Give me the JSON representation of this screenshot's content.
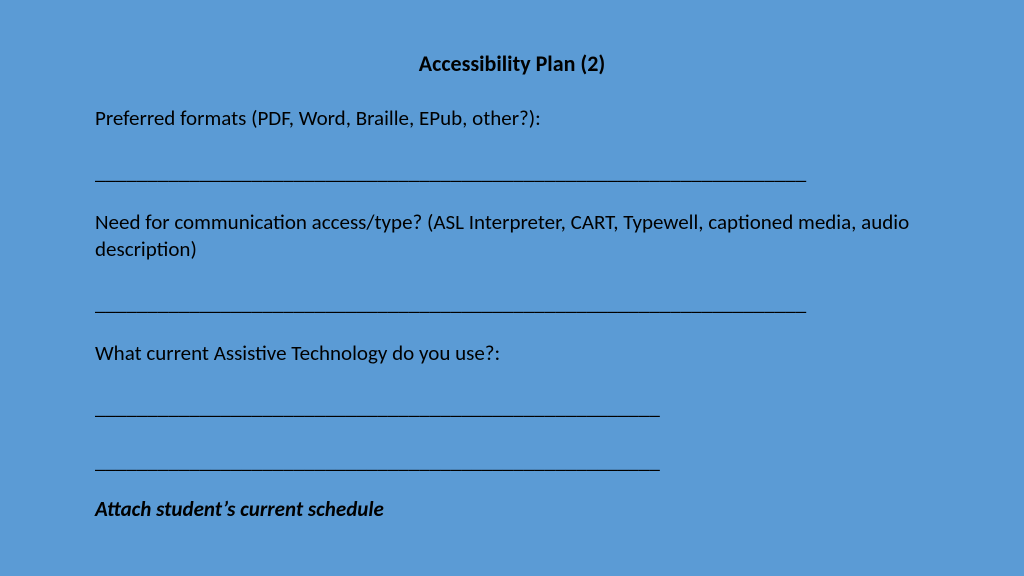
{
  "colors": {
    "background": "#5b9bd5",
    "text": "#000000"
  },
  "typography": {
    "title_fontsize": 22,
    "body_fontsize": 21,
    "font_family": "Calibri"
  },
  "title": "Accessibility Plan (2)",
  "prompts": {
    "preferred_formats": "Preferred formats (PDF, Word, Braille, EPub, other?):",
    "communication_access": "Need for communication access/type? (ASL Interpreter, CART, Typewell, captioned media, audio description)",
    "assistive_tech": "What current Assistive Technology do you use?:"
  },
  "blanks": {
    "long": "____________________________________________________________________",
    "short": "______________________________________________________"
  },
  "attach_note": "Attach student’s current schedule"
}
